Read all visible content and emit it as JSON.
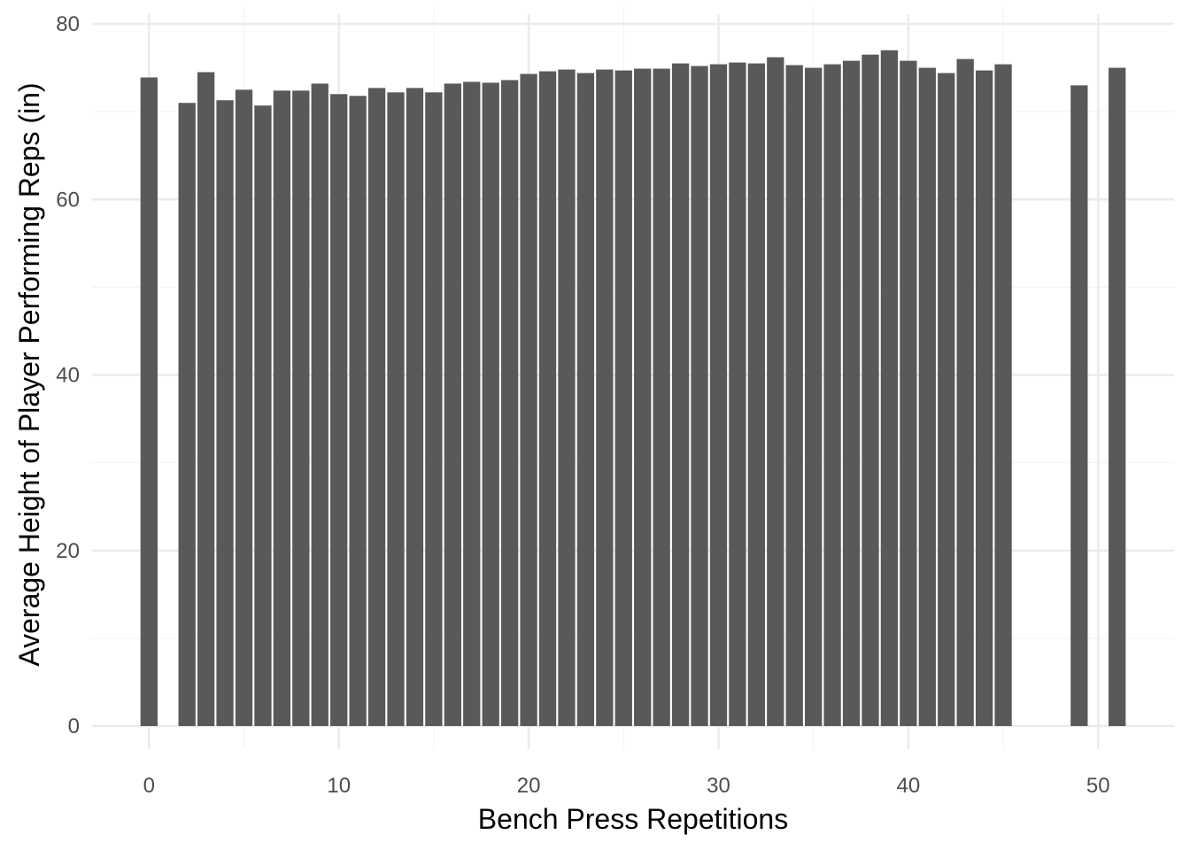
{
  "chart_data": {
    "type": "bar",
    "title": "",
    "xlabel": "Bench Press Repetitions",
    "ylabel": "Average Height of Player Performing Reps (in)",
    "xlim": [
      -3,
      54
    ],
    "ylim": [
      0,
      80
    ],
    "x_ticks": [
      0,
      10,
      20,
      30,
      40,
      50
    ],
    "y_ticks": [
      0,
      20,
      40,
      60,
      80
    ],
    "grid": true,
    "bar_color": "#595959",
    "x": [
      0,
      2,
      3,
      4,
      5,
      6,
      7,
      8,
      9,
      10,
      11,
      12,
      13,
      14,
      15,
      16,
      17,
      18,
      19,
      20,
      21,
      22,
      23,
      24,
      25,
      26,
      27,
      28,
      29,
      30,
      31,
      32,
      33,
      34,
      35,
      36,
      37,
      38,
      39,
      40,
      41,
      42,
      43,
      44,
      45,
      49,
      51
    ],
    "values": [
      73.9,
      71.0,
      74.5,
      71.3,
      72.5,
      70.7,
      72.4,
      72.4,
      73.2,
      72.0,
      71.8,
      72.7,
      72.2,
      72.7,
      72.2,
      73.2,
      73.4,
      73.3,
      73.6,
      74.3,
      74.6,
      74.8,
      74.4,
      74.8,
      74.7,
      74.9,
      74.9,
      75.5,
      75.2,
      75.4,
      75.6,
      75.5,
      76.2,
      75.3,
      75.0,
      75.4,
      75.8,
      76.5,
      77.0,
      75.8,
      75.0,
      74.4,
      76.0,
      74.7,
      75.4,
      73.0,
      75.0
    ]
  }
}
